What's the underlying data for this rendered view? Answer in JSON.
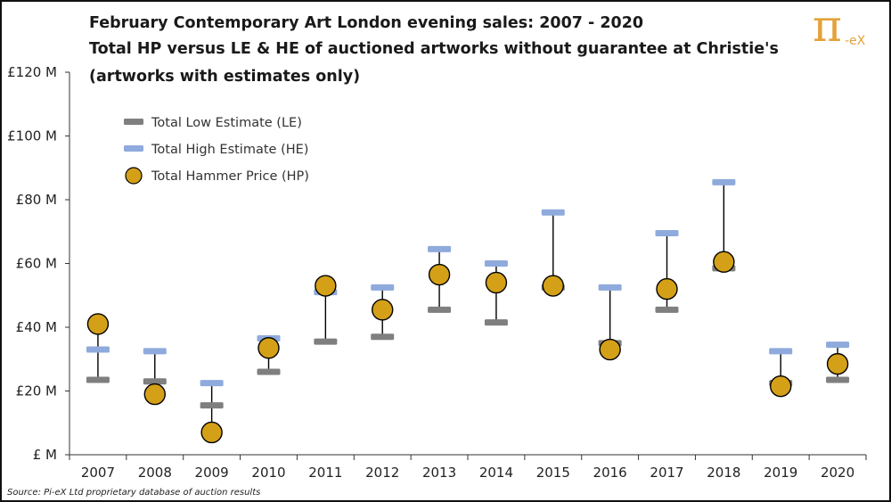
{
  "title": {
    "line1": "February Contemporary Art London evening sales:  2007 - 2020",
    "line2": "Total HP versus LE & HE of auctioned artworks without guarantee at Christie's",
    "line3": "(artworks with estimates only)"
  },
  "logo": {
    "symbol": "π",
    "suffix": "-eX"
  },
  "source": "Source:  Pi-eX Ltd proprietary database of auction results",
  "chart_data": {
    "type": "scatter",
    "title": "Total HP versus LE & HE of auctioned artworks without guarantee at Christie's",
    "categories": [
      "2007",
      "2008",
      "2009",
      "2010",
      "2011",
      "2012",
      "2013",
      "2014",
      "2015",
      "2016",
      "2017",
      "2018",
      "2019",
      "2020"
    ],
    "ylim": [
      0,
      120
    ],
    "yticks": [
      0,
      20,
      40,
      60,
      80,
      100,
      120
    ],
    "ytick_labels": [
      "£ M",
      "£20 M",
      "£40 M",
      "£60 M",
      "£80 M",
      "£100 M",
      "£120 M"
    ],
    "legend_position": "top-left",
    "series": [
      {
        "name": "Total Low Estimate (LE)",
        "color": "#7f7f7f",
        "values": [
          23.5,
          23,
          15.5,
          26,
          35.5,
          37,
          45.5,
          41.5,
          52.5,
          35,
          45.5,
          58.5,
          22.5,
          23.5
        ]
      },
      {
        "name": "Total High Estimate (HE)",
        "color": "#8faadc",
        "values": [
          33,
          32.5,
          22.5,
          36.5,
          51,
          52.5,
          64.5,
          60,
          76,
          52.5,
          69.5,
          85.5,
          32.5,
          34.5
        ]
      },
      {
        "name": "Total Hammer Price (HP)",
        "color": "#d4a017",
        "values": [
          41,
          19,
          7,
          33.5,
          53,
          45.5,
          56.5,
          54,
          53,
          33,
          52,
          60.5,
          21.5,
          28.5
        ]
      }
    ]
  }
}
